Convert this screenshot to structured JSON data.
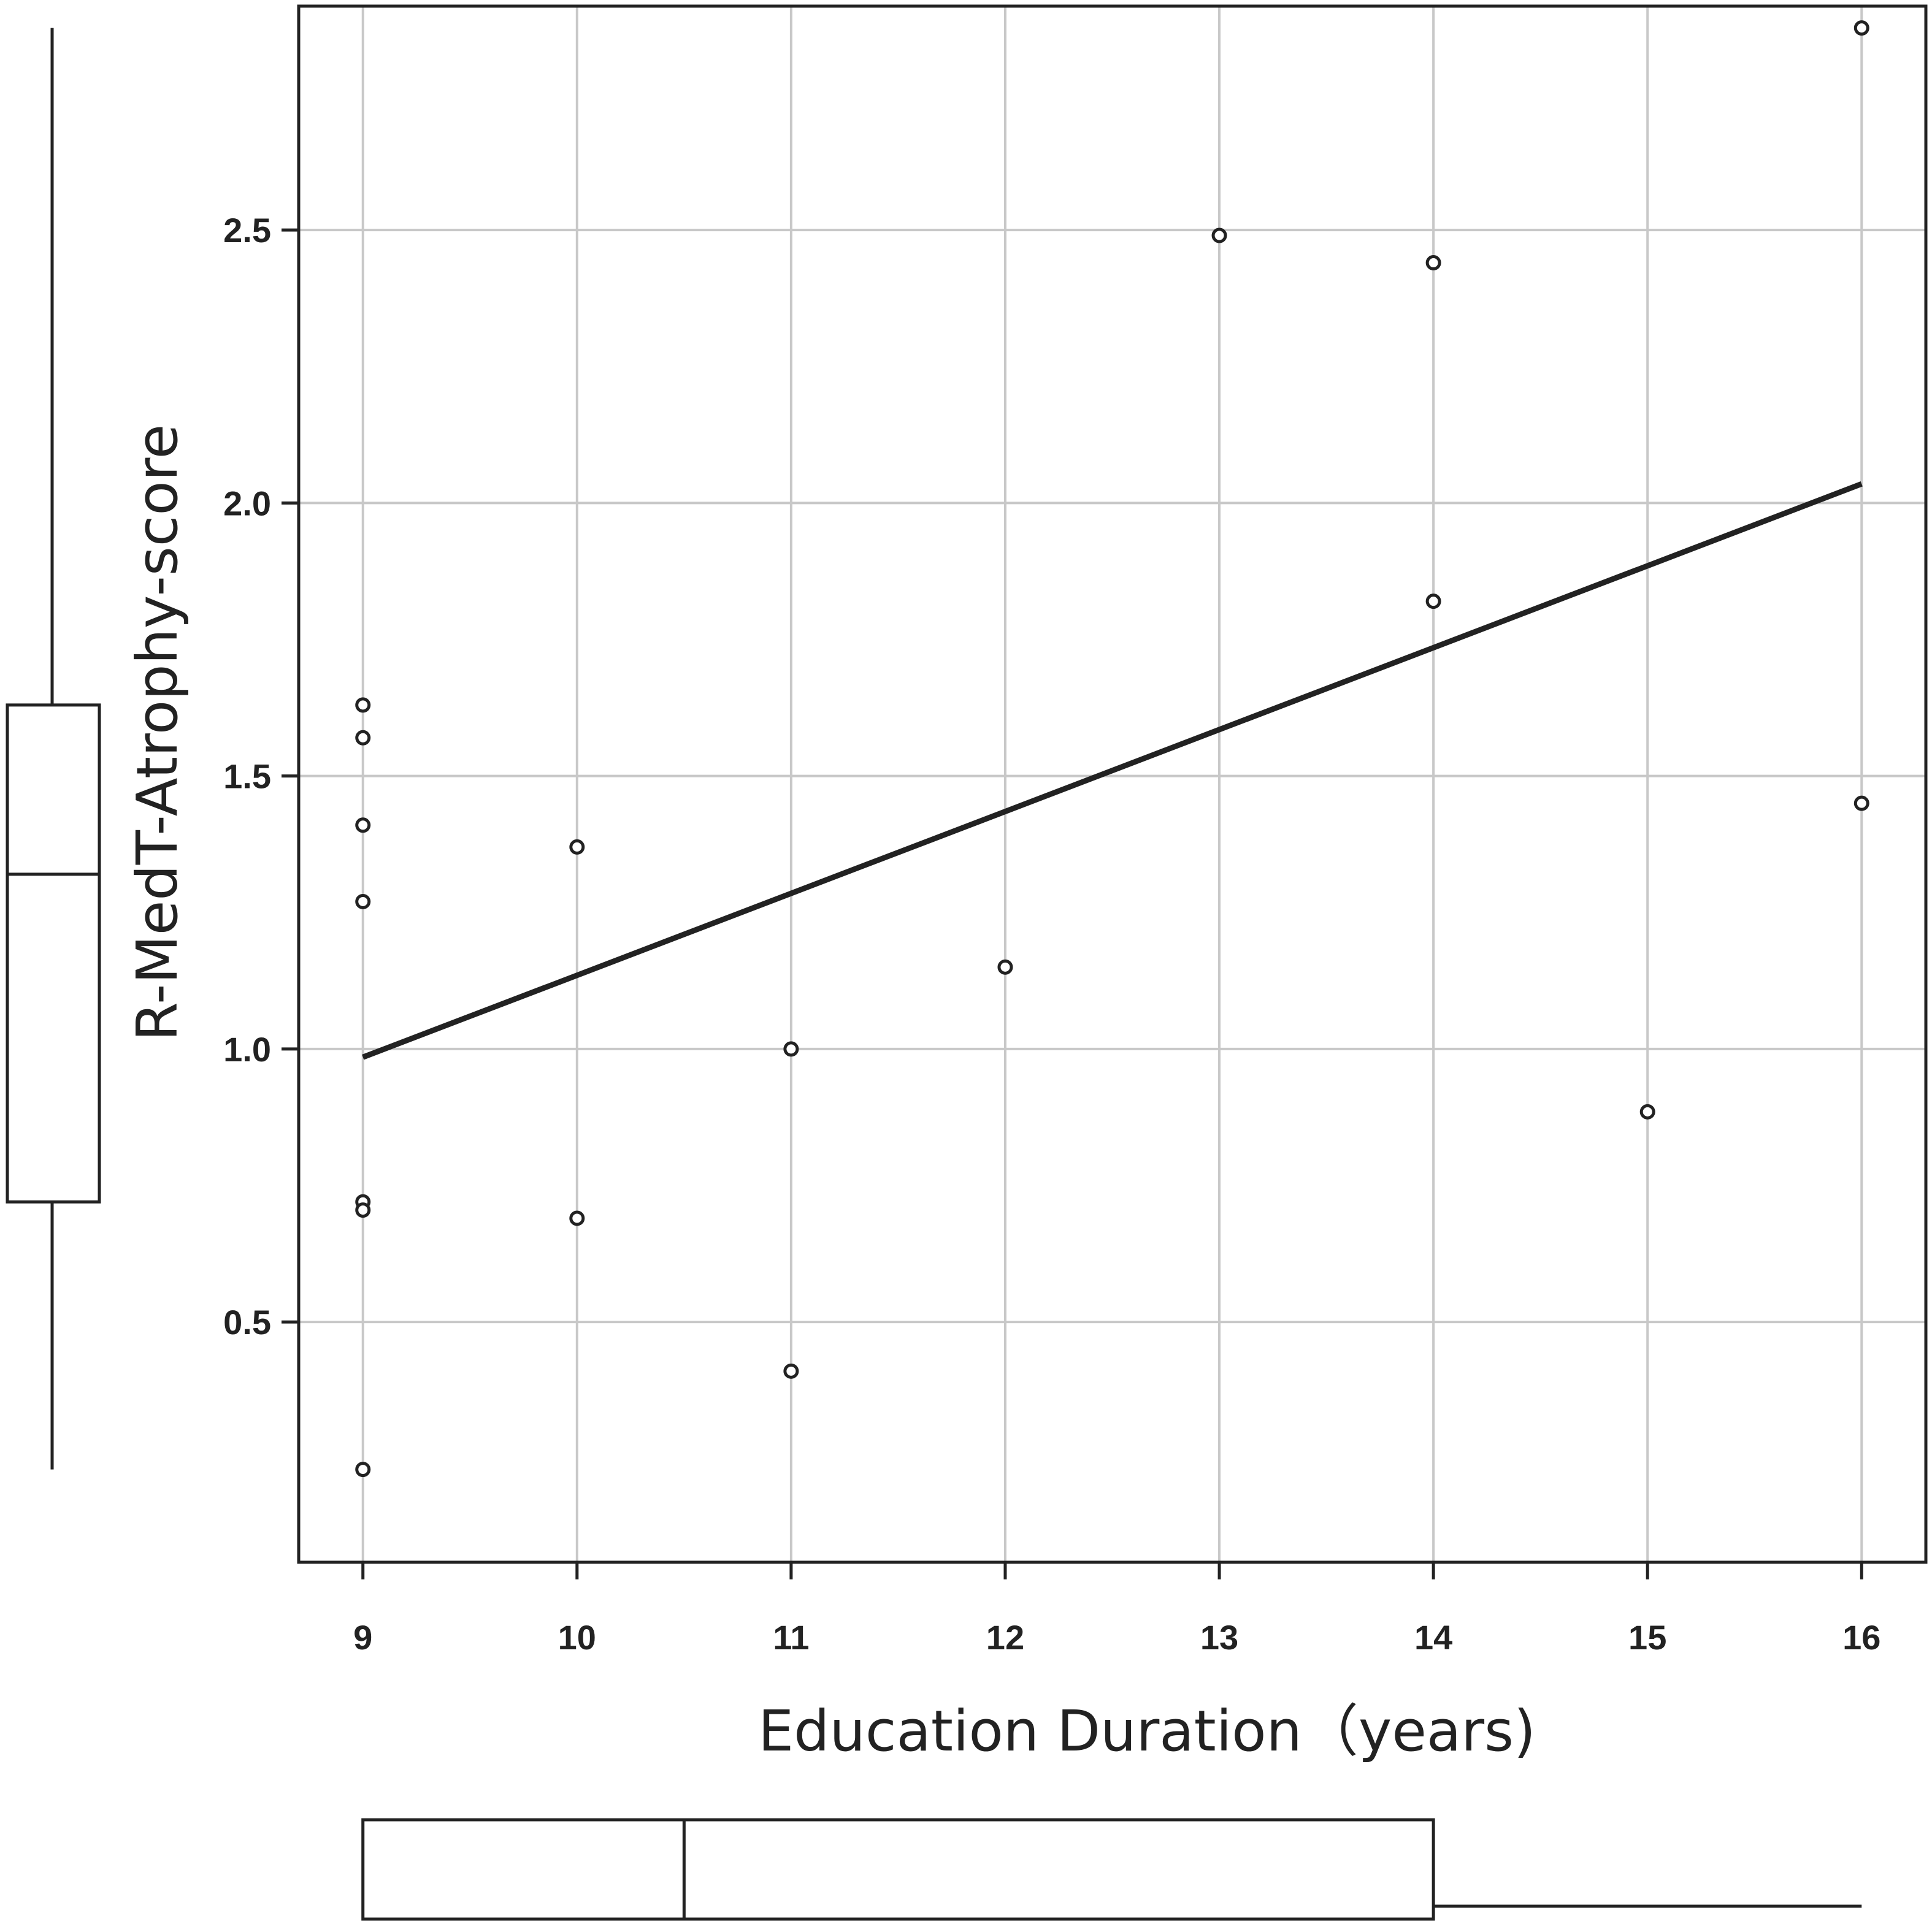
{
  "chart_data": {
    "type": "scatter",
    "title": "",
    "xlabel": "Education Duration（years)",
    "ylabel": "R-MedT-Atrophy-score",
    "xlim": [
      8.7,
      16.3
    ],
    "ylim": [
      0.06,
      2.91
    ],
    "x_ticks": [
      9,
      10,
      11,
      12,
      13,
      14,
      15,
      16
    ],
    "x_tick_labels": [
      "9",
      "10",
      "11",
      "12",
      "13",
      "14",
      "15",
      "16"
    ],
    "y_ticks": [
      0.5,
      1.0,
      1.5,
      2.0,
      2.5
    ],
    "y_tick_labels": [
      "0.5",
      "1.0",
      "1.5",
      "2.0",
      "2.5"
    ],
    "grid": true,
    "legend": "none",
    "series": [
      {
        "points": [
          {
            "x": 9,
            "y": 1.63
          },
          {
            "x": 9,
            "y": 1.57
          },
          {
            "x": 9,
            "y": 1.41
          },
          {
            "x": 9,
            "y": 1.27
          },
          {
            "x": 9,
            "y": 0.72
          },
          {
            "x": 9,
            "y": 0.705
          },
          {
            "x": 9,
            "y": 0.23
          },
          {
            "x": 10,
            "y": 1.37
          },
          {
            "x": 10,
            "y": 0.69
          },
          {
            "x": 11,
            "y": 1.0
          },
          {
            "x": 11,
            "y": 0.41
          },
          {
            "x": 12,
            "y": 1.15
          },
          {
            "x": 13,
            "y": 2.49
          },
          {
            "x": 14,
            "y": 2.44
          },
          {
            "x": 14,
            "y": 1.82
          },
          {
            "x": 15,
            "y": 0.885
          },
          {
            "x": 16,
            "y": 2.87
          },
          {
            "x": 16,
            "y": 1.45
          }
        ]
      }
    ],
    "fit_line": {
      "x": [
        9,
        16
      ],
      "y": [
        0.985,
        2.035
      ]
    },
    "y_boxplot": {
      "whisker_low": 0.23,
      "q1": 0.72,
      "median": 1.32,
      "q3": 1.63,
      "whisker_high": 2.87
    },
    "x_boxplot": {
      "whisker_low": 9,
      "q1": 9,
      "median": 10.5,
      "q3": 14,
      "whisker_high": 16
    },
    "colors": {
      "axis": "#222222",
      "grid": "#c8c8c8",
      "marker": "#222222",
      "fit_line": "#222222"
    }
  }
}
